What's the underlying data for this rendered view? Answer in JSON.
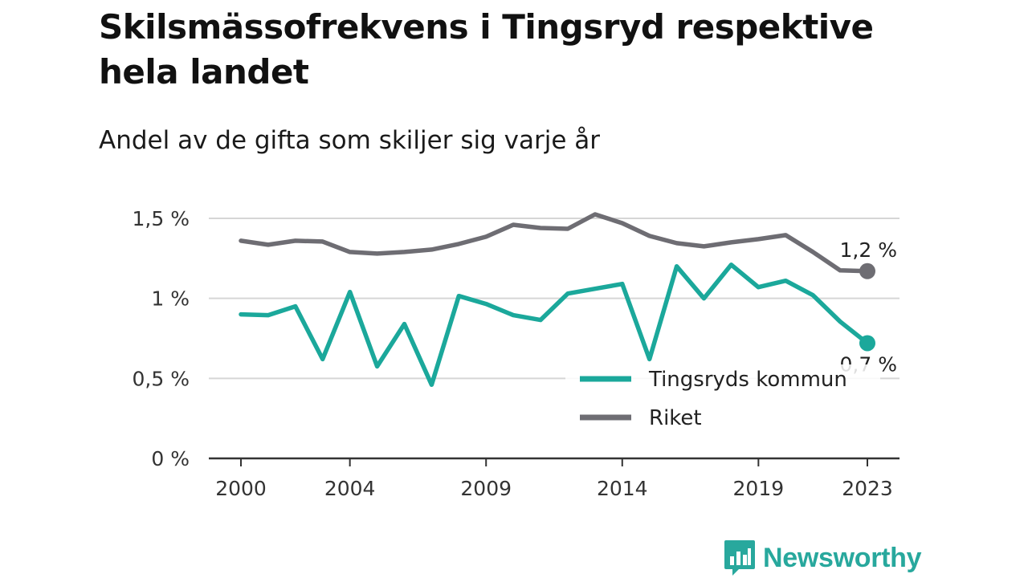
{
  "title": "Skilsmässofrekvens i Tingsryd respektive hela landet",
  "subtitle": "Andel av de gifta som skiljer sig varje år",
  "brand": {
    "name": "Newsworthy",
    "color": "#28a89d",
    "icon": "bar-chart-speech-bubble-icon"
  },
  "chart_data": {
    "type": "line",
    "x": [
      2000,
      2001,
      2002,
      2003,
      2004,
      2005,
      2006,
      2007,
      2008,
      2009,
      2010,
      2011,
      2012,
      2013,
      2014,
      2015,
      2016,
      2017,
      2018,
      2019,
      2020,
      2021,
      2022,
      2023
    ],
    "x_ticks": [
      2000,
      2004,
      2009,
      2014,
      2019,
      2023
    ],
    "x_tick_labels": [
      "2000",
      "2004",
      "2009",
      "2014",
      "2019",
      "2023"
    ],
    "ylim": [
      0,
      1.5
    ],
    "y_ticks": [
      0,
      0.5,
      1,
      1.5
    ],
    "y_tick_labels": [
      "0 %",
      "0,5 %",
      "1 %",
      "1,5 %"
    ],
    "grid": true,
    "legend_position": "bottom-right",
    "series": [
      {
        "name": "Tingsryds kommun",
        "color": "#1ba89b",
        "values": [
          0.9,
          0.895,
          0.95,
          0.62,
          1.04,
          0.575,
          0.84,
          0.46,
          1.015,
          0.965,
          0.895,
          0.865,
          1.03,
          1.06,
          1.09,
          0.62,
          1.2,
          1.0,
          1.21,
          1.07,
          1.11,
          1.02,
          0.855,
          0.72
        ],
        "end_label": "0,7 %"
      },
      {
        "name": "Riket",
        "color": "#6e6d73",
        "values": [
          1.36,
          1.335,
          1.36,
          1.355,
          1.29,
          1.28,
          1.29,
          1.305,
          1.34,
          1.385,
          1.46,
          1.44,
          1.435,
          1.525,
          1.47,
          1.39,
          1.345,
          1.325,
          1.35,
          1.37,
          1.395,
          1.29,
          1.175,
          1.17
        ],
        "end_label": "1,2 %"
      }
    ]
  }
}
